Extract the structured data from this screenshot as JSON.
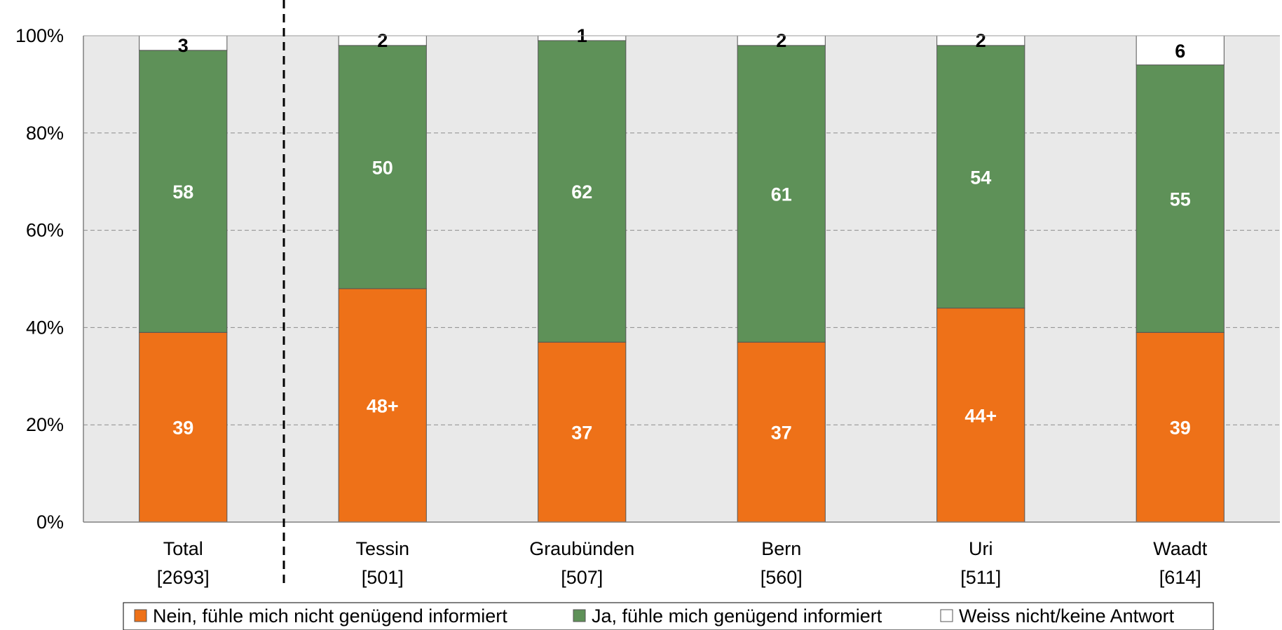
{
  "chart_data": {
    "type": "bar",
    "stacked": true,
    "percent": true,
    "categories": [
      {
        "name": "Total",
        "n": "[2693]"
      },
      {
        "name": "Tessin",
        "n": "[501]"
      },
      {
        "name": "Graubünden",
        "n": "[507]"
      },
      {
        "name": "Bern",
        "n": "[560]"
      },
      {
        "name": "Uri",
        "n": "[511]"
      },
      {
        "name": "Waadt",
        "n": "[614]"
      }
    ],
    "series": [
      {
        "name": "Nein, fühle mich nicht genügend informiert",
        "color": "#ee7118",
        "label_color": "#ffffff",
        "values": [
          39,
          48,
          37,
          37,
          44,
          39
        ],
        "labels": [
          "39",
          "48+",
          "37",
          "37",
          "44+",
          "39"
        ]
      },
      {
        "name": "Ja, fühle mich genügend informiert",
        "color": "#5e9158",
        "label_color": "#ffffff",
        "values": [
          58,
          50,
          62,
          61,
          54,
          55
        ],
        "labels": [
          "58",
          "50",
          "62",
          "61",
          "54",
          "55"
        ]
      },
      {
        "name": "Weiss nicht/keine Antwort",
        "color": "#ffffff",
        "label_color": "#000000",
        "values": [
          3,
          2,
          1,
          2,
          2,
          6
        ],
        "labels": [
          "3",
          "2",
          "1",
          "2",
          "2",
          "6"
        ]
      }
    ],
    "ylim": [
      0,
      100
    ],
    "y_ticks": [
      "0%",
      "20%",
      "40%",
      "60%",
      "80%",
      "100%"
    ],
    "grid": true,
    "legend_position": "bottom",
    "separator_after_category": "Total",
    "plot_background": "#e9e9e9"
  }
}
